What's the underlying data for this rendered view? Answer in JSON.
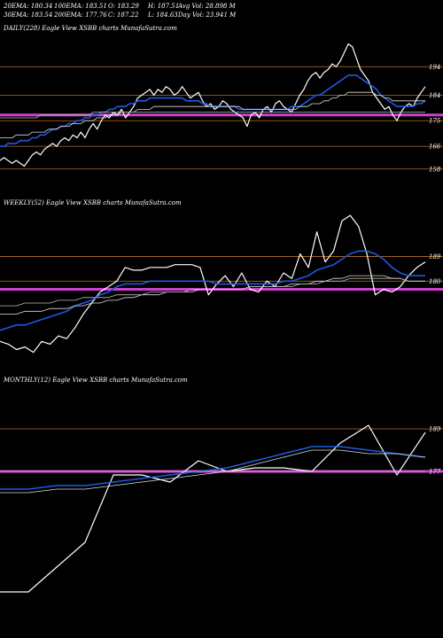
{
  "header": {
    "row1": [
      "20EMA: 180.34",
      "100EMA: 183.51",
      "O: 183.29",
      "H: 187.51",
      "Avg Vol: 28.898 M"
    ],
    "row2": [
      "30EMA: 183.54",
      "200EMA: 177.76",
      "C: 187.22",
      "L: 184.63",
      "Day Vol: 23.941 M"
    ]
  },
  "colors": {
    "background": "#000000",
    "price": "#ffffff",
    "ema_fast": "#1e5ae0",
    "level": "#b8702a",
    "pink": "#d040d0"
  },
  "chart_data": [
    {
      "type": "line",
      "panel_label": "DAILY(228) Eagle   View  XSBB charts MunafaSutra.com",
      "yticks": [
        "194",
        "184",
        "175",
        "166",
        "158"
      ],
      "ylim": [
        152,
        205
      ],
      "series": [
        {
          "values": [
            161,
            162,
            161,
            160,
            161,
            160,
            159,
            161,
            163,
            164,
            163,
            165,
            166,
            167,
            166,
            168,
            169,
            168,
            170,
            169,
            171,
            169,
            172,
            174,
            172,
            175,
            177,
            176,
            178,
            177,
            179,
            176,
            178,
            180,
            183,
            184,
            185,
            186,
            184,
            186,
            185,
            187,
            186,
            184,
            185,
            187,
            185,
            183,
            184,
            185,
            182,
            180,
            181,
            179,
            180,
            182,
            181,
            179,
            178,
            177,
            176,
            173,
            177,
            178,
            176,
            179,
            180,
            178,
            181,
            182,
            180,
            179,
            178,
            181,
            184,
            186,
            189,
            191,
            192,
            190,
            192,
            193,
            195,
            194,
            196,
            199,
            202,
            201,
            197,
            193,
            191,
            189,
            185,
            183,
            181,
            179,
            180,
            177,
            175,
            178,
            180,
            181,
            180,
            183,
            185,
            187
          ]
        },
        {
          "values": [
            166,
            166,
            167,
            167,
            167,
            168,
            168,
            168,
            169,
            169,
            170,
            170,
            171,
            172,
            172,
            173,
            173,
            174,
            174,
            175,
            175,
            176,
            176,
            177,
            177,
            178,
            178,
            179,
            179,
            180,
            180,
            180,
            181,
            181,
            182,
            182,
            182,
            183,
            183,
            183,
            183,
            183,
            183,
            183,
            183,
            183,
            182,
            182,
            182,
            182,
            181,
            181,
            180,
            180,
            180,
            180,
            180,
            180,
            180,
            179,
            179,
            179,
            179,
            179,
            179,
            179,
            179,
            179,
            179,
            179,
            179,
            179,
            180,
            180,
            180,
            181,
            182,
            183,
            184,
            184,
            185,
            186,
            187,
            188,
            189,
            190,
            191,
            191,
            191,
            190,
            189,
            188,
            187,
            186,
            184,
            183,
            182,
            181,
            180,
            180,
            180,
            180,
            180,
            181,
            181,
            182
          ]
        },
        {
          "values": [
            169,
            169,
            169,
            169,
            170,
            170,
            170,
            170,
            171,
            171,
            171,
            171,
            172,
            172,
            172,
            173,
            173,
            173,
            174,
            174,
            174,
            175,
            175,
            175,
            176,
            176,
            176,
            177,
            177,
            177,
            178,
            178,
            178,
            178,
            179,
            179,
            179,
            179,
            180,
            180,
            180,
            180,
            180,
            180,
            180,
            180,
            180,
            180,
            180,
            180,
            180,
            180,
            180,
            180,
            180,
            180,
            180,
            180,
            180,
            180,
            179,
            179,
            179,
            179,
            179,
            179,
            179,
            179,
            179,
            179,
            179,
            179,
            179,
            179,
            180,
            180,
            180,
            181,
            181,
            181,
            182,
            182,
            183,
            183,
            184,
            184,
            185,
            185,
            185,
            185,
            185,
            185,
            185,
            184,
            184,
            183,
            183,
            182,
            182,
            182,
            182,
            182,
            182,
            182,
            182,
            182
          ]
        },
        {
          "values": [
            176,
            176,
            176,
            176,
            176,
            176,
            176,
            176,
            176,
            176,
            177,
            177,
            177,
            177,
            177,
            177,
            177,
            177,
            177,
            177,
            177,
            177,
            177,
            178,
            178,
            178,
            178,
            178,
            178,
            178,
            178,
            178,
            178,
            178,
            178,
            178,
            178,
            178,
            178,
            178,
            178,
            178,
            178,
            178,
            178,
            178,
            178,
            178,
            178,
            178,
            178,
            178,
            178,
            178,
            178,
            178,
            178,
            178,
            178,
            178,
            178,
            178,
            178,
            178,
            178,
            178,
            178,
            178,
            178,
            178,
            178,
            178,
            178,
            178,
            178,
            178,
            178,
            178,
            178,
            178,
            178,
            178,
            178,
            178,
            178,
            178,
            178,
            178,
            178,
            178,
            178,
            178,
            178,
            178,
            178,
            178,
            178,
            178,
            178,
            178,
            178,
            178,
            178,
            178,
            178,
            178
          ]
        }
      ],
      "levels": [
        194,
        184,
        175,
        166,
        158
      ],
      "pink_band": 177
    },
    {
      "type": "line",
      "panel_label": "WEEKLY(52) Eagle   View  XSBB charts MunafaSutra.com",
      "yticks": [
        "189",
        "180"
      ],
      "ylim": [
        150,
        205
      ],
      "series": [
        {
          "values": [
            158,
            157,
            155,
            156,
            154,
            158,
            157,
            160,
            159,
            163,
            168,
            172,
            176,
            178,
            180,
            185,
            184,
            184,
            185,
            185,
            185,
            186,
            186,
            186,
            185,
            175,
            179,
            182,
            178,
            183,
            177,
            176,
            180,
            178,
            183,
            181,
            190,
            185,
            198,
            187,
            191,
            202,
            204,
            200,
            190,
            175,
            177,
            176,
            178,
            182,
            185,
            187
          ]
        },
        {
          "values": [
            162,
            163,
            164,
            164,
            165,
            166,
            167,
            168,
            169,
            171,
            172,
            173,
            175,
            176,
            178,
            179,
            179,
            179,
            180,
            180,
            180,
            180,
            180,
            180,
            180,
            180,
            179,
            179,
            179,
            179,
            179,
            179,
            179,
            179,
            180,
            180,
            181,
            182,
            184,
            185,
            186,
            188,
            190,
            191,
            191,
            190,
            188,
            185,
            183,
            182,
            182,
            182
          ]
        },
        {
          "values": [
            168,
            168,
            168,
            169,
            169,
            169,
            170,
            170,
            170,
            171,
            171,
            172,
            172,
            173,
            173,
            174,
            174,
            175,
            175,
            175,
            176,
            176,
            176,
            176,
            177,
            177,
            177,
            177,
            177,
            177,
            178,
            178,
            178,
            178,
            178,
            179,
            179,
            179,
            180,
            180,
            181,
            181,
            182,
            182,
            182,
            182,
            182,
            181,
            181,
            180,
            180,
            180
          ]
        },
        {
          "values": [
            171,
            171,
            171,
            172,
            172,
            172,
            172,
            173,
            173,
            173,
            174,
            174,
            174,
            174,
            175,
            175,
            175,
            175,
            176,
            176,
            176,
            176,
            176,
            177,
            177,
            177,
            177,
            177,
            177,
            177,
            178,
            178,
            178,
            178,
            178,
            178,
            179,
            179,
            179,
            180,
            180,
            180,
            181,
            181,
            181,
            181,
            181,
            181,
            181,
            180,
            180,
            180
          ]
        }
      ],
      "levels": [
        189,
        180
      ],
      "pink_band": 177
    },
    {
      "type": "line",
      "panel_label": "MONTHLY(12) Eagle   View  XSBB charts MunafaSutra.com",
      "yticks": [
        "189",
        "177"
      ],
      "ylim": [
        140,
        200
      ],
      "series": [
        {
          "values": [
            143,
            143,
            150,
            157,
            176,
            176,
            174,
            180,
            177,
            178,
            178,
            177,
            185,
            190,
            176,
            188
          ]
        },
        {
          "values": [
            172,
            172,
            173,
            173,
            174,
            175,
            176,
            177,
            178,
            180,
            182,
            184,
            184,
            183,
            182,
            181
          ]
        },
        {
          "values": [
            171,
            171,
            172,
            172,
            173,
            174,
            175,
            176,
            177,
            179,
            181,
            183,
            183,
            182,
            182,
            181
          ]
        },
        {
          "values": [
            177,
            177,
            177,
            177,
            177,
            177,
            177,
            177,
            177,
            177,
            177,
            177,
            177,
            177,
            177,
            177
          ]
        }
      ],
      "levels": [
        189,
        177
      ],
      "pink_band": 177
    }
  ]
}
